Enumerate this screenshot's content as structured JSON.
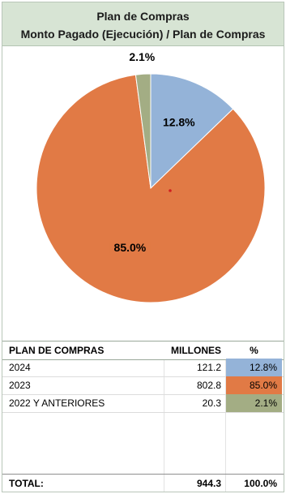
{
  "header": {
    "title": "Plan de Compras",
    "subtitle": "Monto Pagado (Ejecución) / Plan de Compras"
  },
  "chart_data": {
    "type": "pie",
    "labels": [
      "2024",
      "2023",
      "2022 Y ANTERIORES"
    ],
    "values": [
      12.8,
      85.0,
      2.1
    ],
    "data_labels": [
      "12.8%",
      "85.0%",
      "2.1%"
    ],
    "colors": [
      "#94b3d8",
      "#e17a45",
      "#a3ad84"
    ],
    "start_angle_deg": 0,
    "direction": "clockwise"
  },
  "table": {
    "headers": {
      "name": "PLAN DE COMPRAS",
      "value": "MILLONES",
      "pct": "%"
    },
    "rows": [
      {
        "name": "2024",
        "value": "121.2",
        "pct": "12.8%",
        "color": "#94b3d8"
      },
      {
        "name": "2023",
        "value": "802.8",
        "pct": "85.0%",
        "color": "#e17a45"
      },
      {
        "name": "2022 Y ANTERIORES",
        "value": "20.3",
        "pct": "2.1%",
        "color": "#a3ad84"
      }
    ],
    "total": {
      "name": "TOTAL:",
      "value": "944.3",
      "pct": "100.0%"
    }
  }
}
